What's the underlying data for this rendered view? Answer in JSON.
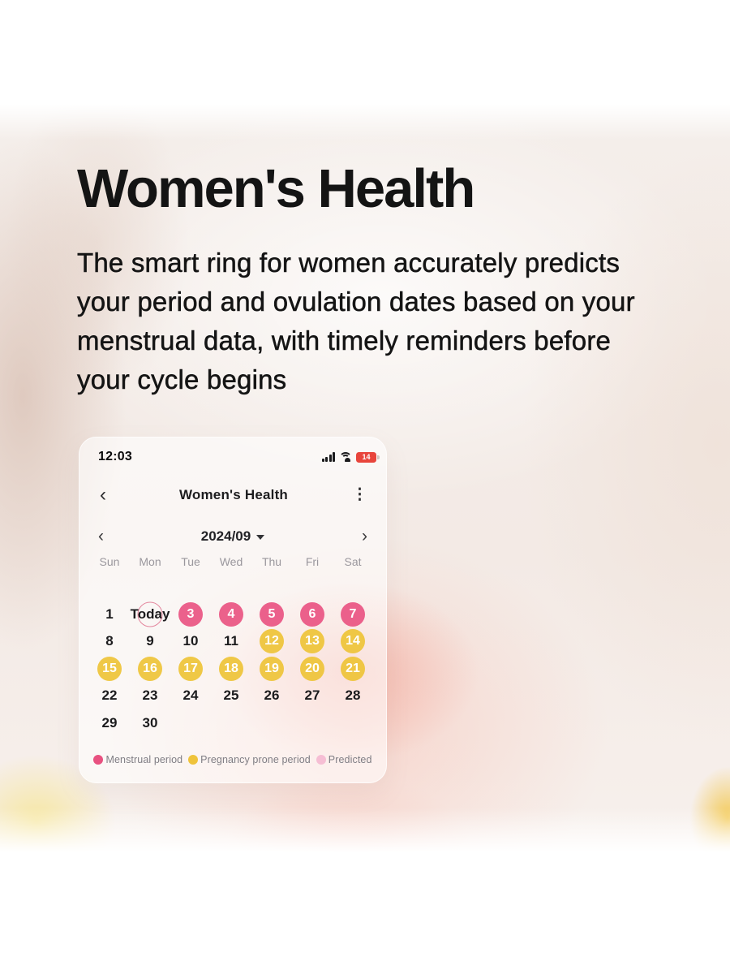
{
  "hero": {
    "title": "Women's Health",
    "body_lines": [
      "The smart ring for women accurately predicts",
      "your period and ovulation dates based on your",
      "menstrual data, with timely reminders before",
      "your cycle begins"
    ]
  },
  "phone": {
    "status_bar": {
      "time": "12:03",
      "battery_level": "14",
      "icons": [
        "cellular-signal-icon",
        "wifi-icon",
        "battery-low-icon"
      ]
    },
    "header": {
      "back_icon": "‹",
      "title": "Women's Health",
      "menu_icon": "⋮"
    },
    "month_nav": {
      "prev_icon": "‹",
      "label": "2024/09",
      "next_icon": "›"
    },
    "weekdays": [
      "Sun",
      "Mon",
      "Tue",
      "Wed",
      "Thu",
      "Fri",
      "Sat"
    ],
    "calendar_cells": [
      {
        "label": "1",
        "type": "plain"
      },
      {
        "label": "Today",
        "type": "today"
      },
      {
        "label": "3",
        "type": "period"
      },
      {
        "label": "4",
        "type": "period"
      },
      {
        "label": "5",
        "type": "period"
      },
      {
        "label": "6",
        "type": "period"
      },
      {
        "label": "7",
        "type": "period"
      },
      {
        "label": "8",
        "type": "plain"
      },
      {
        "label": "9",
        "type": "plain"
      },
      {
        "label": "10",
        "type": "plain"
      },
      {
        "label": "11",
        "type": "plain"
      },
      {
        "label": "12",
        "type": "fertile"
      },
      {
        "label": "13",
        "type": "fertile"
      },
      {
        "label": "14",
        "type": "fertile"
      },
      {
        "label": "15",
        "type": "fertile"
      },
      {
        "label": "16",
        "type": "fertile"
      },
      {
        "label": "17",
        "type": "fertile"
      },
      {
        "label": "18",
        "type": "fertile"
      },
      {
        "label": "19",
        "type": "fertile"
      },
      {
        "label": "20",
        "type": "fertile"
      },
      {
        "label": "21",
        "type": "fertile"
      },
      {
        "label": "22",
        "type": "plain"
      },
      {
        "label": "23",
        "type": "plain"
      },
      {
        "label": "24",
        "type": "plain"
      },
      {
        "label": "25",
        "type": "plain"
      },
      {
        "label": "26",
        "type": "plain"
      },
      {
        "label": "27",
        "type": "plain"
      },
      {
        "label": "28",
        "type": "plain"
      },
      {
        "label": "29",
        "type": "plain"
      },
      {
        "label": "30",
        "type": "plain"
      }
    ],
    "legend": [
      {
        "label": "Menstrual period",
        "color": "#e85180"
      },
      {
        "label": "Pregnancy prone period",
        "color": "#efc33b"
      },
      {
        "label": "Predicted",
        "color": "#f6bed4"
      }
    ]
  },
  "colors": {
    "period_pink": "#e85180",
    "fertile_yellow": "#eec43d",
    "predicted_pink": "#f6bed4",
    "battery_red": "#e8453c",
    "today_ring": "#dd6987"
  }
}
